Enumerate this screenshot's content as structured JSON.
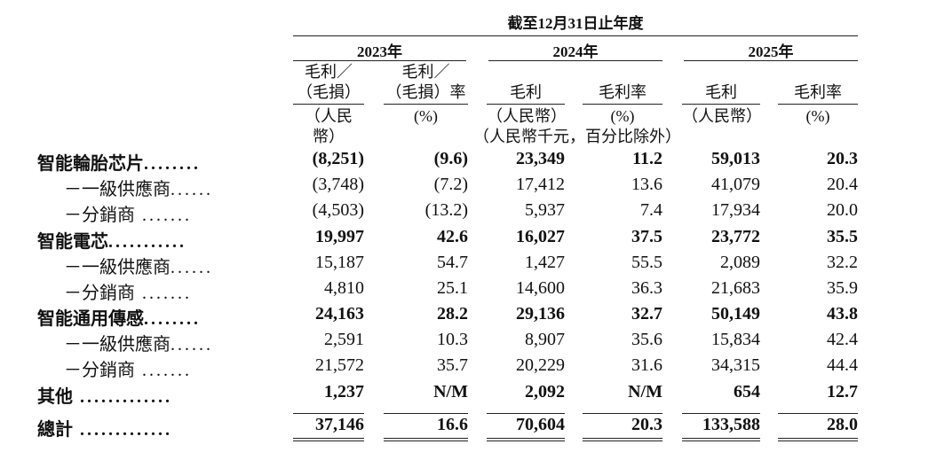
{
  "period_header": "截至12月31日止年度",
  "years": [
    "2023年",
    "2024年",
    "2025年"
  ],
  "col_headers": [
    {
      "l1": "毛利／",
      "l2": "（毛損）",
      "unit": "（人民幣）"
    },
    {
      "l1": "毛利／",
      "l2": "（毛損）率",
      "unit": "(%)"
    },
    {
      "l1": "",
      "l2": "毛利",
      "unit": "（人民幣）"
    },
    {
      "l1": "",
      "l2": "毛利率",
      "unit": "(%)"
    },
    {
      "l1": "",
      "l2": "毛利",
      "unit": "（人民幣）"
    },
    {
      "l1": "",
      "l2": "毛利率",
      "unit": "(%)"
    }
  ],
  "unit_note": "（人民幣千元，百分比除外）",
  "rows": [
    {
      "label": "智能輪胎芯片",
      "dots": "........",
      "bold": true,
      "sub": false,
      "values": [
        "(8,251)",
        "(9.6)",
        "23,349",
        "11.2",
        "59,013",
        "20.3"
      ]
    },
    {
      "label": "－一級供應商",
      "dots": "......",
      "bold": false,
      "sub": true,
      "values": [
        "(3,748)",
        "(7.2)",
        "17,412",
        "13.6",
        "41,079",
        "20.4"
      ]
    },
    {
      "label": "－分銷商",
      "dots": " .......",
      "bold": false,
      "sub": true,
      "values": [
        "(4,503)",
        "(13.2)",
        "5,937",
        "7.4",
        "17,934",
        "20.0"
      ]
    },
    {
      "label": "智能電芯",
      "dots": "...........",
      "bold": true,
      "sub": false,
      "values": [
        "19,997",
        "42.6",
        "16,027",
        "37.5",
        "23,772",
        "35.5"
      ]
    },
    {
      "label": "－一級供應商",
      "dots": "......",
      "bold": false,
      "sub": true,
      "values": [
        "15,187",
        "54.7",
        "1,427",
        "55.5",
        "2,089",
        "32.2"
      ]
    },
    {
      "label": "－分銷商",
      "dots": " .......",
      "bold": false,
      "sub": true,
      "values": [
        "4,810",
        "25.1",
        "14,600",
        "36.3",
        "21,683",
        "35.9"
      ]
    },
    {
      "label": "智能通用傳感",
      "dots": "........",
      "bold": true,
      "sub": false,
      "values": [
        "24,163",
        "28.2",
        "29,136",
        "32.7",
        "50,149",
        "43.8"
      ]
    },
    {
      "label": "－一級供應商",
      "dots": "......",
      "bold": false,
      "sub": true,
      "values": [
        "2,591",
        "10.3",
        "8,907",
        "35.6",
        "15,834",
        "42.4"
      ]
    },
    {
      "label": "－分銷商",
      "dots": " .......",
      "bold": false,
      "sub": true,
      "values": [
        "21,572",
        "35.7",
        "20,229",
        "31.6",
        "34,315",
        "44.4"
      ]
    },
    {
      "label": "其他",
      "dots": " .............",
      "bold": true,
      "sub": false,
      "values": [
        "1,237",
        "N/M",
        "2,092",
        "N/M",
        "654",
        "12.7"
      ]
    },
    {
      "label": "總計",
      "dots": " .............",
      "bold": true,
      "sub": false,
      "values": [
        "37,146",
        "16.6",
        "70,604",
        "20.3",
        "133,588",
        "28.0"
      ]
    }
  ]
}
